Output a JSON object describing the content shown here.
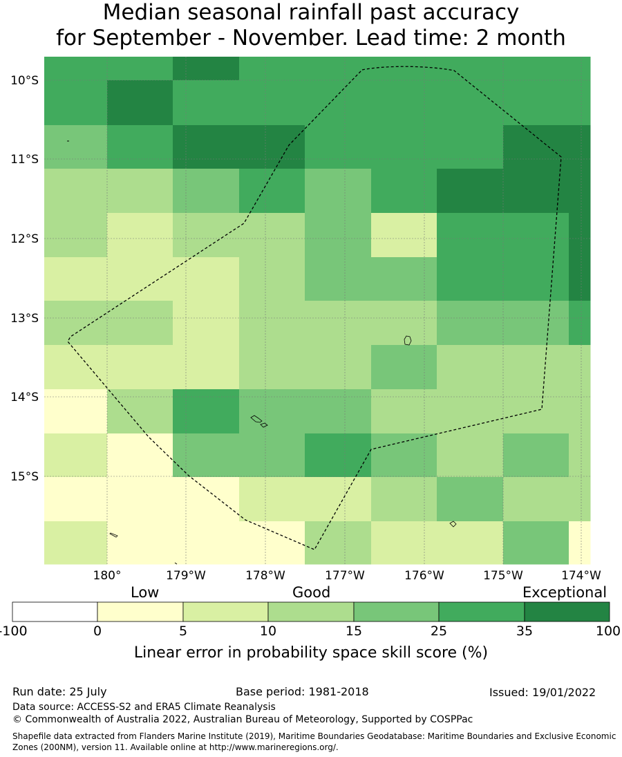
{
  "title_line1": "Median seasonal rainfall past accuracy",
  "title_line2": "for September - November. Lead time: 2 month",
  "map": {
    "lat_labels": [
      "10°S",
      "11°S",
      "12°S",
      "13°S",
      "14°S",
      "15°S"
    ],
    "lon_labels": [
      "180°",
      "179°W",
      "178°W",
      "177°W",
      "176°W",
      "175°W",
      "174°W"
    ],
    "boundary": "dashed EEZ boundary",
    "grid_values": [
      [
        25,
        25,
        35,
        25,
        25,
        25,
        25,
        25,
        25
      ],
      [
        25,
        35,
        25,
        25,
        25,
        25,
        25,
        25,
        25
      ],
      [
        15,
        25,
        35,
        35,
        25,
        25,
        25,
        35,
        35
      ],
      [
        10,
        10,
        15,
        25,
        15,
        25,
        35,
        35,
        35
      ],
      [
        10,
        5,
        10,
        10,
        15,
        5,
        25,
        25,
        35
      ],
      [
        5,
        5,
        5,
        10,
        15,
        15,
        25,
        25,
        35
      ],
      [
        10,
        10,
        5,
        10,
        10,
        10,
        15,
        15,
        25
      ],
      [
        5,
        5,
        5,
        10,
        10,
        15,
        10,
        10,
        10
      ],
      [
        0,
        10,
        25,
        15,
        15,
        10,
        10,
        10,
        10
      ],
      [
        5,
        0,
        15,
        15,
        25,
        15,
        10,
        15,
        10
      ],
      [
        0,
        0,
        0,
        5,
        5,
        10,
        15,
        10,
        10
      ],
      [
        5,
        0,
        0,
        0,
        10,
        5,
        5,
        15,
        0
      ]
    ]
  },
  "colorbar": {
    "categories": [
      "Low",
      "Good",
      "Exceptional"
    ],
    "ticks": [
      "-100",
      "0",
      "5",
      "10",
      "15",
      "25",
      "35",
      "100"
    ],
    "colors": [
      "#ffffff",
      "#ffffcc",
      "#d9f0a3",
      "#addd8e",
      "#78c679",
      "#41ab5d",
      "#238443"
    ],
    "axis_label": "Linear error in probability space skill score (%)"
  },
  "footer": {
    "run_date": "Run date: 25 July",
    "base_period": "Base period: 1981-2018",
    "issued": "Issued: 19/01/2022",
    "data_source": "Data source: ACCESS-S2 and ERA5 Climate Reanalysis",
    "copyright": "© Commonwealth of Australia 2022, Australian Bureau of Meteorology, Supported by COSPPac",
    "shapefile": "Shapefile data extracted from Flanders Marine Institute (2019), Maritime Boundaries Geodatabase: Maritime Boundaries and Exclusive Economic Zones (200NM), version 11. Available online at http://www.marineregions.org/."
  }
}
